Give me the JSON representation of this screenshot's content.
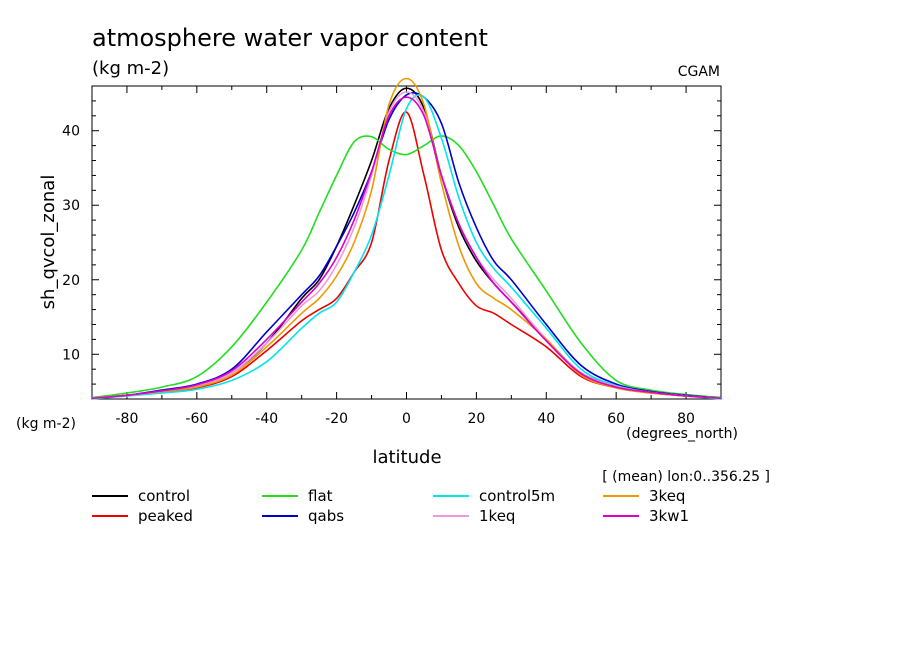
{
  "chart_data": {
    "type": "line",
    "title": "atmosphere water vapor content",
    "subtitle": "(kg m-2)",
    "source_label": "CGAM",
    "xlabel": "latitude",
    "xunits": "(degrees_north)",
    "ylabel": "sh_qvcol_zonal",
    "yunits": "(kg m-2)",
    "range_note": "[ (mean) lon:0..356.25 ]",
    "xlim": [
      -90,
      90
    ],
    "ylim": [
      4,
      46
    ],
    "xticks": [
      -80,
      -60,
      -40,
      -20,
      0,
      20,
      40,
      60,
      80
    ],
    "yticks": [
      10,
      20,
      30,
      40
    ],
    "x": [
      -90,
      -80,
      -70,
      -60,
      -50,
      -40,
      -30,
      -25,
      -20,
      -15,
      -10,
      -5,
      0,
      5,
      10,
      15,
      20,
      25,
      30,
      40,
      50,
      60,
      70,
      80,
      90
    ],
    "series": [
      {
        "name": "control",
        "color": "#000000",
        "values": [
          4.1,
          4.5,
          5.0,
          5.8,
          7.5,
          11.5,
          17.5,
          20.0,
          24.5,
          30.0,
          36.0,
          43.0,
          45.7,
          43.0,
          34.0,
          27.0,
          22.5,
          19.5,
          17.0,
          12.0,
          7.5,
          5.8,
          5.0,
          4.5,
          4.2
        ]
      },
      {
        "name": "peaked",
        "color": "#ee0000",
        "values": [
          4.1,
          4.5,
          5.0,
          5.5,
          7.0,
          10.5,
          14.5,
          16.0,
          17.5,
          21.0,
          25.0,
          36.0,
          42.5,
          34.0,
          24.0,
          19.5,
          16.5,
          15.5,
          14.0,
          11.0,
          7.0,
          5.5,
          4.8,
          4.4,
          4.1
        ]
      },
      {
        "name": "flat",
        "color": "#22dd22",
        "values": [
          4.2,
          4.8,
          5.6,
          7.0,
          11.0,
          17.0,
          24.0,
          29.0,
          34.0,
          38.5,
          39.2,
          37.5,
          36.8,
          38.0,
          39.3,
          38.0,
          34.5,
          30.0,
          25.5,
          18.5,
          11.5,
          6.5,
          5.2,
          4.6,
          4.2
        ]
      },
      {
        "name": "qabs",
        "color": "#0000cc",
        "values": [
          4.1,
          4.5,
          5.2,
          6.0,
          8.0,
          13.0,
          18.0,
          20.5,
          24.5,
          29.0,
          34.5,
          41.5,
          44.8,
          44.5,
          41.0,
          33.0,
          27.0,
          22.5,
          20.0,
          14.0,
          8.5,
          6.0,
          5.0,
          4.5,
          4.1
        ]
      },
      {
        "name": "control5m",
        "color": "#00e5ee",
        "values": [
          4.0,
          4.4,
          4.8,
          5.3,
          6.5,
          9.0,
          13.5,
          15.5,
          17.0,
          21.0,
          26.0,
          34.0,
          43.0,
          44.5,
          39.0,
          31.0,
          25.0,
          21.5,
          19.0,
          13.5,
          8.0,
          5.8,
          4.9,
          4.4,
          4.0
        ]
      },
      {
        "name": "1keq",
        "color": "#ee99dd",
        "values": [
          4.1,
          4.5,
          5.0,
          5.8,
          7.5,
          11.5,
          16.5,
          18.5,
          22.0,
          27.0,
          34.0,
          42.5,
          45.2,
          42.5,
          34.0,
          27.5,
          23.0,
          20.0,
          17.5,
          12.0,
          7.5,
          5.7,
          4.9,
          4.4,
          4.1
        ]
      },
      {
        "name": "3keq",
        "color": "#ee9900",
        "values": [
          4.1,
          4.5,
          5.0,
          5.6,
          7.2,
          11.0,
          15.5,
          17.5,
          20.5,
          25.0,
          32.0,
          43.5,
          47.0,
          43.5,
          33.0,
          24.5,
          19.5,
          17.5,
          16.0,
          12.0,
          7.2,
          5.5,
          4.8,
          4.4,
          4.1
        ]
      },
      {
        "name": "3kw1",
        "color": "#dd00cc",
        "values": [
          4.1,
          4.5,
          5.1,
          5.9,
          7.8,
          12.0,
          17.0,
          19.5,
          23.0,
          28.0,
          34.5,
          42.0,
          44.5,
          42.0,
          34.0,
          27.5,
          23.0,
          19.5,
          17.0,
          11.8,
          7.4,
          5.6,
          4.9,
          4.4,
          4.1
        ]
      }
    ]
  }
}
